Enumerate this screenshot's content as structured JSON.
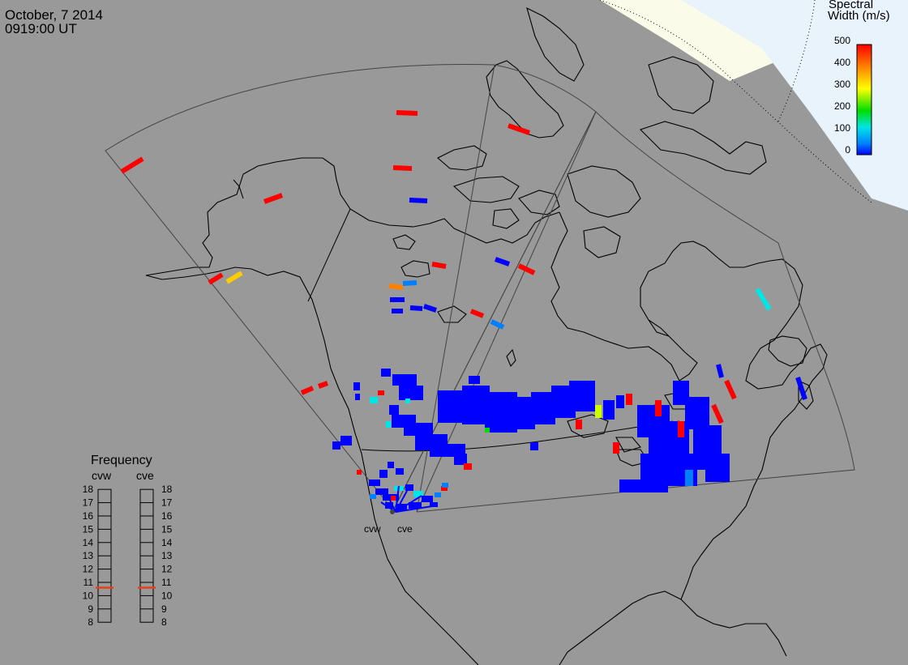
{
  "header": {
    "date": "October, 7 2014",
    "time": "0919:00 UT"
  },
  "colors": {
    "background_gray": "#999999",
    "polar_day": "#fbfbe9",
    "polar_night": "#e8f3fb",
    "frequency_marker": "#e8401a"
  },
  "color_scale": {
    "title_line1": "Spectral",
    "title_line2": "Width (m/s)",
    "ticks": [
      "500",
      "400",
      "300",
      "200",
      "100",
      "0"
    ],
    "min": 0,
    "max": 500,
    "gradient": [
      "#ff0000",
      "#ff8000",
      "#ffff00",
      "#00dd00",
      "#00e5e5",
      "#0080ff",
      "#0000ff"
    ]
  },
  "frequency_panel": {
    "title": "Frequency",
    "radars": [
      {
        "name": "cvw",
        "frequency_mhz": 10.6
      },
      {
        "name": "cve",
        "frequency_mhz": 10.6
      }
    ],
    "ticks": [
      "18",
      "17",
      "16",
      "15",
      "14",
      "13",
      "12",
      "11",
      "10",
      "9",
      "8"
    ]
  },
  "sites": [
    {
      "name": "cvw"
    },
    {
      "name": "cve"
    }
  ]
}
